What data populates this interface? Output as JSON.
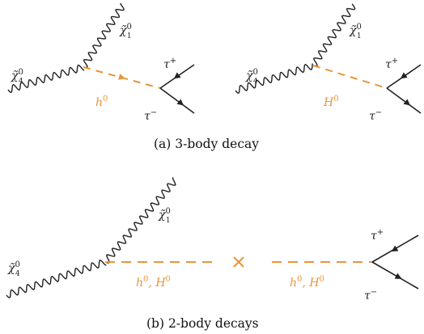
{
  "colors": {
    "line": "#222222",
    "scalar": "#e8953a"
  },
  "figure_a": {
    "caption": "(a)  3-body decay",
    "left": {
      "incoming": {
        "base": "χ̃",
        "sup": "0",
        "sub": "4"
      },
      "outgoing": {
        "base": "χ̃",
        "sup": "0",
        "sub": "1"
      },
      "propagator": {
        "base": "h",
        "sup": "0"
      },
      "tau_plus": {
        "base": "τ",
        "sup": "+"
      },
      "tau_minus": {
        "base": "τ",
        "sup": "−"
      }
    },
    "right": {
      "incoming": {
        "base": "χ̃",
        "sup": "0",
        "sub": "4"
      },
      "outgoing": {
        "base": "χ̃",
        "sup": "0",
        "sub": "1"
      },
      "propagator": {
        "base": "H",
        "sup": "0"
      },
      "tau_plus": {
        "base": "τ",
        "sup": "+"
      },
      "tau_minus": {
        "base": "τ",
        "sup": "−"
      }
    }
  },
  "figure_b": {
    "caption": "(b)  2-body decays",
    "incoming": {
      "base": "χ̃",
      "sup": "0",
      "sub": "4"
    },
    "outgoing": {
      "base": "χ̃",
      "sup": "0",
      "sub": "1"
    },
    "propagator_left": {
      "base": "h",
      "sup": "0",
      "sep": ", ",
      "base2": "H",
      "sup2": "0"
    },
    "propagator_right": {
      "base": "h",
      "sup": "0",
      "sep": ", ",
      "base2": "H",
      "sup2": "0"
    },
    "tau_plus": {
      "base": "τ",
      "sup": "+"
    },
    "tau_minus": {
      "base": "τ",
      "sup": "−"
    }
  }
}
